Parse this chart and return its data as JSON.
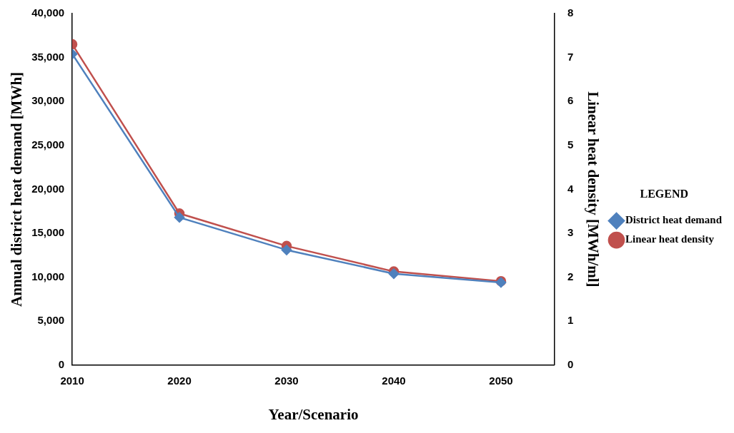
{
  "chart_data": {
    "type": "line",
    "xlabel": "Year/Scenario",
    "ylabel": "Annual district heat demand [MWh]",
    "y2label": "Linear heat density [MWh/ml]",
    "legend_title": "LEGEND",
    "x": [
      2010,
      2020,
      2030,
      2040,
      2050
    ],
    "series": [
      {
        "name": "District heat demand",
        "color": "#4f81bd",
        "marker": "diamond",
        "values": [
          35400,
          16800,
          13100,
          10400,
          9400
        ]
      },
      {
        "name": "Linear heat density",
        "color": "#c0504d",
        "marker": "circle",
        "axis": "y2",
        "values": [
          7.3,
          3.45,
          2.71,
          2.13,
          1.91
        ]
      }
    ],
    "xlim": [
      2010,
      2055
    ],
    "xticks": [
      2010,
      2020,
      2030,
      2040,
      2050
    ],
    "ylim": [
      0,
      40000
    ],
    "yticks": [
      0,
      {
        "value": 5000,
        "label": "5,000"
      },
      {
        "value": 10000,
        "label": "10,000"
      },
      {
        "value": 15000,
        "label": "15,000"
      },
      {
        "value": 20000,
        "label": "20,000"
      },
      {
        "value": 25000,
        "label": "25,000"
      },
      {
        "value": 30000,
        "label": "30,000"
      },
      {
        "value": 35000,
        "label": "35,000"
      },
      {
        "value": 40000,
        "label": "40,000"
      }
    ],
    "y2lim": [
      0,
      8
    ],
    "y2ticks": [
      0,
      1,
      2,
      3,
      4,
      5,
      6,
      7,
      8
    ],
    "grid": false,
    "legend": "right",
    "line_style": "solid"
  }
}
